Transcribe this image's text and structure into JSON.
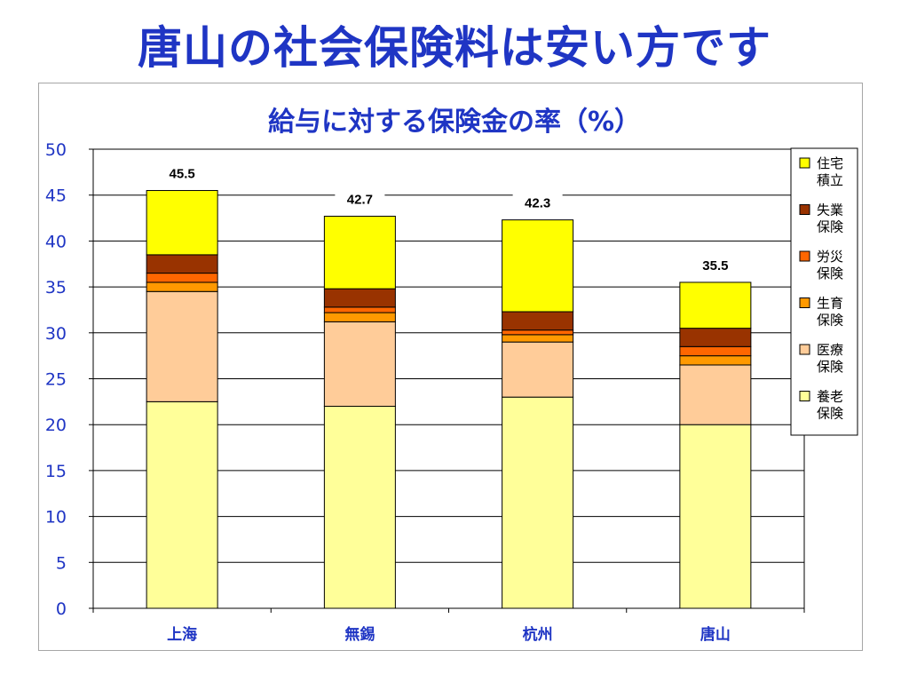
{
  "page": {
    "title": "唐山の社会保険料は安い方です"
  },
  "chart_data": {
    "type": "bar",
    "stacked": true,
    "title": "給与に対する保険金の率（%）",
    "categories": [
      "上海",
      "無錫",
      "杭州",
      "唐山"
    ],
    "ylim": [
      0,
      50
    ],
    "yticks": [
      "0",
      "5",
      "10",
      "15",
      "20",
      "25",
      "30",
      "35",
      "40",
      "45",
      "50"
    ],
    "grid": true,
    "legend_position": "right",
    "series": [
      {
        "name": "養老保険",
        "color": "#ffff99",
        "values": [
          22.5,
          22,
          23,
          20
        ]
      },
      {
        "name": "医療保険",
        "color": "#ffcc99",
        "values": [
          12,
          9.2,
          6,
          6.5
        ]
      },
      {
        "name": "生育保険",
        "color": "#ff9900",
        "values": [
          1,
          1,
          0.8,
          1
        ]
      },
      {
        "name": "労災保険",
        "color": "#ff6600",
        "values": [
          1,
          0.6,
          0.5,
          1
        ]
      },
      {
        "name": "失業保険",
        "color": "#993300",
        "values": [
          2,
          2,
          2,
          2
        ]
      },
      {
        "name": "住宅積立",
        "color": "#ffff00",
        "values": [
          7,
          7.9,
          10,
          5
        ]
      }
    ],
    "totals": [
      "45.5",
      "42.7",
      "42.3",
      "35.5"
    ]
  }
}
